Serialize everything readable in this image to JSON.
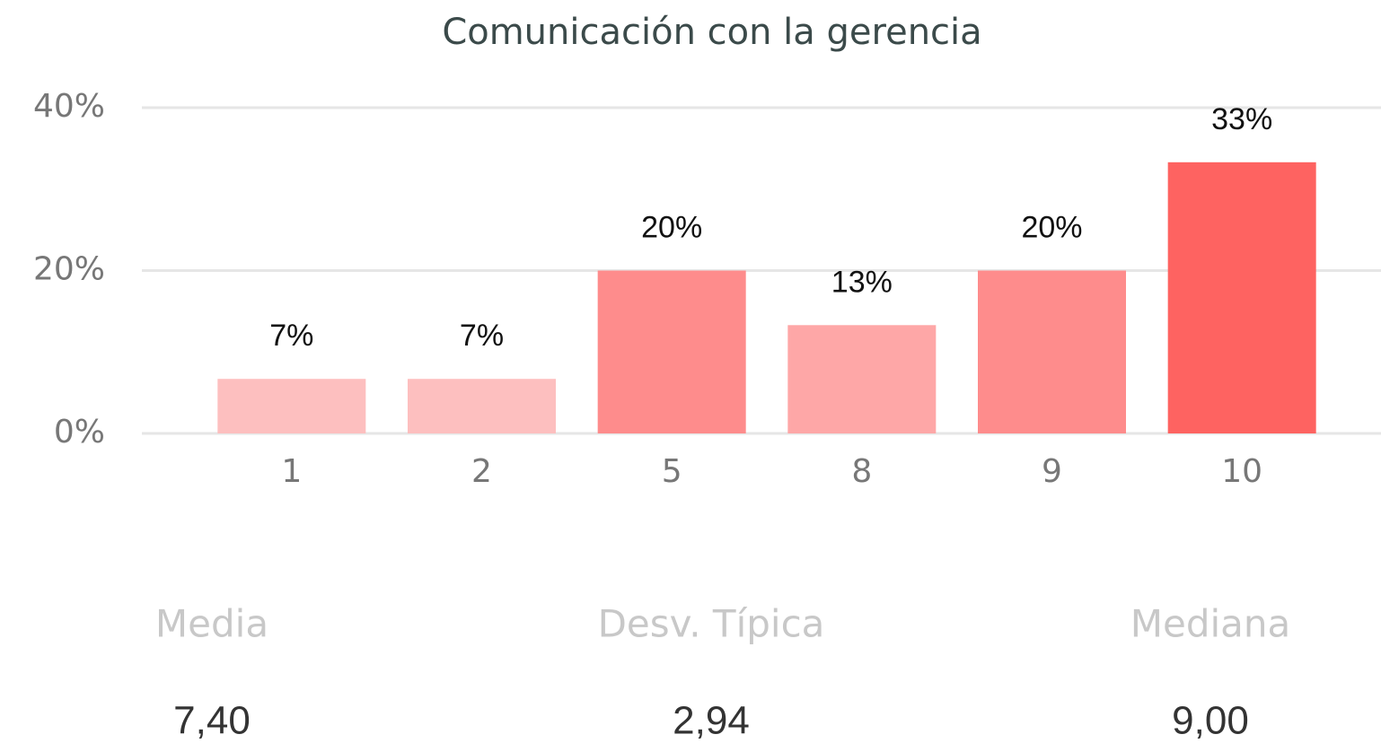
{
  "chart_data": {
    "type": "bar",
    "title": "Comunicación con la gerencia",
    "categories": [
      "1",
      "2",
      "5",
      "8",
      "9",
      "10"
    ],
    "values": [
      6.7,
      6.7,
      20,
      13.3,
      20,
      33.3
    ],
    "value_labels": [
      "7%",
      "7%",
      "20%",
      "13%",
      "20%",
      "33%"
    ],
    "colors": [
      "#fdbfbf",
      "#fdbfbf",
      "#fe8c8c",
      "#fea7a7",
      "#fe8c8c",
      "#fe6361"
    ],
    "ylim": [
      0,
      40
    ],
    "yticks": [
      {
        "value": 0,
        "label": "0%"
      },
      {
        "value": 20,
        "label": "20%"
      },
      {
        "value": 40,
        "label": "40%"
      }
    ],
    "grid": true,
    "stats": [
      {
        "label": "Media",
        "value": "7,40"
      },
      {
        "label": "Desv. Típica",
        "value": "2,94"
      },
      {
        "label": "Mediana",
        "value": "9,00"
      }
    ]
  }
}
